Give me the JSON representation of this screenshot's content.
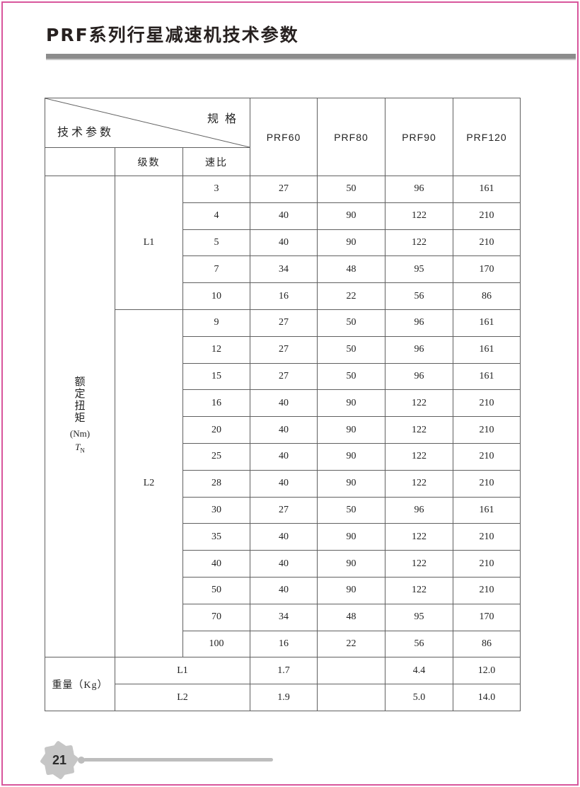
{
  "page": {
    "title": "PRF系列行星减速机技术参数",
    "page_number": "21"
  },
  "table": {
    "corner": {
      "top_right": "规格",
      "bottom_left": "技术参数"
    },
    "sub_headers": {
      "stage": "级数",
      "ratio": "速比"
    },
    "models": [
      "PRF60",
      "PRF80",
      "PRF90",
      "PRF120"
    ],
    "torque_label": {
      "chars": [
        "额",
        "定",
        "扭",
        "矩"
      ],
      "unit": "(Nm)",
      "symbol": "T",
      "symbol_sub": "N"
    },
    "weight_label": "重量（Kg）",
    "groups": [
      {
        "stage": "L1",
        "rows": [
          {
            "ratio": "3",
            "values": [
              "27",
              "50",
              "96",
              "161"
            ],
            "shaded": true
          },
          {
            "ratio": "4",
            "values": [
              "40",
              "90",
              "122",
              "210"
            ],
            "shaded": false
          },
          {
            "ratio": "5",
            "values": [
              "40",
              "90",
              "122",
              "210"
            ],
            "shaded": true
          },
          {
            "ratio": "7",
            "values": [
              "34",
              "48",
              "95",
              "170"
            ],
            "shaded": false
          },
          {
            "ratio": "10",
            "values": [
              "16",
              "22",
              "56",
              "86"
            ],
            "shaded": true
          }
        ]
      },
      {
        "stage": "L2",
        "rows": [
          {
            "ratio": "9",
            "values": [
              "27",
              "50",
              "96",
              "161"
            ],
            "shaded": false
          },
          {
            "ratio": "12",
            "values": [
              "27",
              "50",
              "96",
              "161"
            ],
            "shaded": true
          },
          {
            "ratio": "15",
            "values": [
              "27",
              "50",
              "96",
              "161"
            ],
            "shaded": false
          },
          {
            "ratio": "16",
            "values": [
              "40",
              "90",
              "122",
              "210"
            ],
            "shaded": true
          },
          {
            "ratio": "20",
            "values": [
              "40",
              "90",
              "122",
              "210"
            ],
            "shaded": false
          },
          {
            "ratio": "25",
            "values": [
              "40",
              "90",
              "122",
              "210"
            ],
            "shaded": true
          },
          {
            "ratio": "28",
            "values": [
              "40",
              "90",
              "122",
              "210"
            ],
            "shaded": false
          },
          {
            "ratio": "30",
            "values": [
              "27",
              "50",
              "96",
              "161"
            ],
            "shaded": true
          },
          {
            "ratio": "35",
            "values": [
              "40",
              "90",
              "122",
              "210"
            ],
            "shaded": false
          },
          {
            "ratio": "40",
            "values": [
              "40",
              "90",
              "122",
              "210"
            ],
            "shaded": true
          },
          {
            "ratio": "50",
            "values": [
              "40",
              "90",
              "122",
              "210"
            ],
            "shaded": false
          },
          {
            "ratio": "70",
            "values": [
              "34",
              "48",
              "95",
              "170"
            ],
            "shaded": true
          },
          {
            "ratio": "100",
            "values": [
              "16",
              "22",
              "56",
              "86"
            ],
            "shaded": false
          }
        ]
      }
    ],
    "weight_rows": [
      {
        "stage": "L1",
        "values": [
          "1.7",
          "",
          "4.4",
          "12.0"
        ],
        "shaded": true
      },
      {
        "stage": "L2",
        "values": [
          "1.9",
          "",
          "5.0",
          "14.0"
        ],
        "shaded": false
      }
    ]
  },
  "colors": {
    "accent_pink": "#d8569c",
    "row_shading": "#d8d5ce",
    "title_bar_gray": "#8c8c8c",
    "footer_gray": "#c6c6c6"
  }
}
